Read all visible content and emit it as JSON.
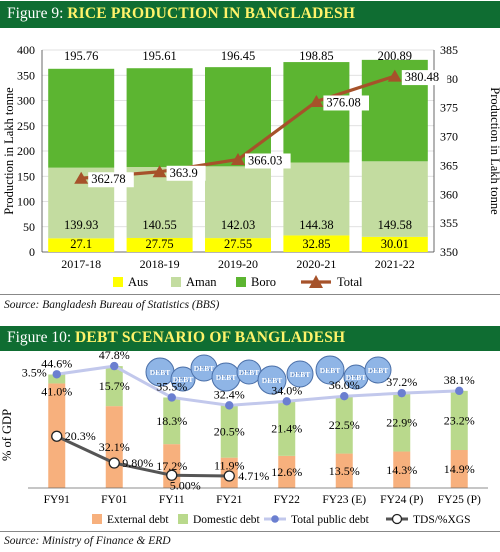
{
  "fig9": {
    "label": "Figure 9: ",
    "title": "RICE PRODUCTION IN BANGLADESH",
    "source": "Source: Bangladesh Bureau of Statistics (BBS)"
  },
  "fig10": {
    "label": "Figure 10: ",
    "title": "DEBT SCENARIO OF BANGLADESH",
    "source": "Source:  Ministry of Finance & ERD",
    "decor_text": "DEBT"
  },
  "chart_data": [
    {
      "type": "bar",
      "title": "RICE PRODUCTION IN BANGLADESH",
      "categories": [
        "2017-18",
        "2018-19",
        "2019-20",
        "2020-21",
        "2021-22"
      ],
      "ylabel": "Production in Lakh tonne",
      "y2label": "Production in Lakh tonne",
      "ylim": [
        0,
        400
      ],
      "y2lim": [
        350,
        385
      ],
      "yticks": [
        0,
        50,
        100,
        150,
        200,
        250,
        300,
        350,
        400
      ],
      "y2ticks": [
        350,
        355,
        360,
        365,
        370,
        375,
        380,
        385
      ],
      "stacked": true,
      "series": [
        {
          "name": "Aus",
          "color": "#ffff00",
          "values": [
            27.1,
            27.75,
            27.55,
            32.85,
            30.01
          ],
          "labels": [
            "27.1",
            "27.75",
            "27.55",
            "32.85",
            "30.01"
          ]
        },
        {
          "name": "Aman",
          "color": "#c3dca0",
          "values": [
            139.93,
            140.55,
            142.03,
            144.38,
            149.58
          ],
          "labels": [
            "139.93",
            "140.55",
            "142.03",
            "144.38",
            "149.58"
          ]
        },
        {
          "name": "Boro",
          "color": "#5cb531",
          "values": [
            195.76,
            195.61,
            196.45,
            198.85,
            200.89
          ],
          "labels": [
            "195.76",
            "195.61",
            "196.45",
            "198.85",
            "200.89"
          ]
        },
        {
          "name": "Total",
          "type": "line",
          "axis": "right",
          "color": "#a6522a",
          "values": [
            362.78,
            363.9,
            366.03,
            376.08,
            380.48
          ],
          "labels": [
            "362.78",
            "363.9",
            "366.03",
            "376.08",
            "380.48"
          ]
        }
      ],
      "legend_position": "bottom"
    },
    {
      "type": "bar",
      "title": "DEBT SCENARIO OF BANGLADESH",
      "categories": [
        "FY91",
        "FY01",
        "FY11",
        "FY21",
        "FY22",
        "FY23 (E)",
        "FY24 (P)",
        "FY25 (P)"
      ],
      "ylabel": "% of GDP",
      "stacked": true,
      "series": [
        {
          "name": "External debt",
          "color": "#f7b07d",
          "values": [
            41.0,
            32.1,
            17.2,
            11.9,
            12.6,
            13.5,
            14.3,
            14.9
          ],
          "labels": [
            "41.0%",
            "32.1%",
            "17.2%",
            "11.9%",
            "12.6%",
            "13.5%",
            "14.3%",
            "14.9%"
          ]
        },
        {
          "name": "Domestic debt",
          "color": "#b9d98c",
          "values": [
            3.5,
            15.7,
            18.3,
            20.5,
            21.4,
            22.5,
            22.9,
            23.2
          ],
          "labels": [
            "3.5%",
            "15.7%",
            "18.3%",
            "20.5%",
            "21.4%",
            "22.5%",
            "22.9%",
            "23.2%"
          ]
        },
        {
          "name": "Total public debt",
          "type": "line",
          "color": "#c2c8ec",
          "marker_color": "#6b7fd0",
          "values": [
            44.6,
            47.8,
            35.5,
            32.4,
            34.0,
            36.0,
            37.2,
            38.1
          ],
          "labels": [
            "44.6%",
            "47.8%",
            "35.5%",
            "32.4%",
            "34.0%",
            "36.0%",
            "37.2%",
            "38.1%"
          ]
        },
        {
          "name": "TDS/%XGS",
          "type": "line",
          "color": "#555555",
          "values": [
            20.3,
            9.8,
            5.0,
            4.71,
            null,
            null,
            null,
            null
          ],
          "labels": [
            "20.3%",
            "9.80%",
            "5.00%",
            "4.71%"
          ]
        }
      ],
      "legend_position": "bottom"
    }
  ]
}
